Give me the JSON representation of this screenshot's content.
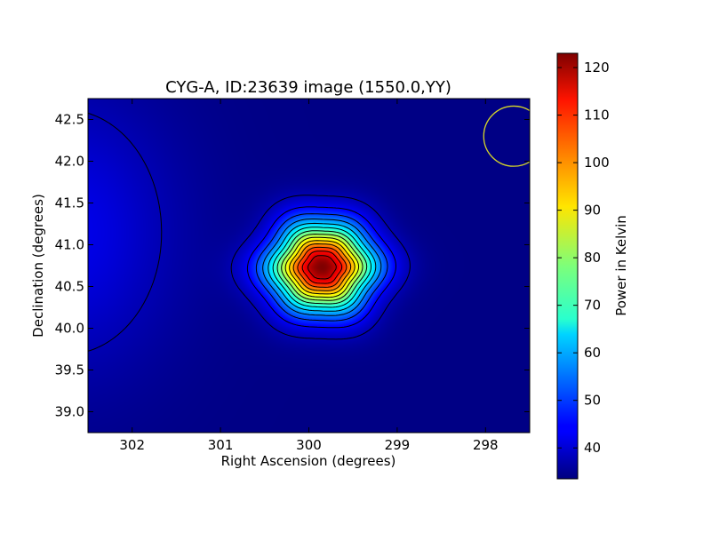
{
  "chart_data": {
    "type": "heatmap",
    "title": "CYG-A, ID:23639 image (1550.0,YY)",
    "xlabel": "Right Ascension (degrees)",
    "ylabel": "Declination (degrees)",
    "xlim": [
      302.5,
      297.5
    ],
    "ylim": [
      38.75,
      42.75
    ],
    "x_ticks": [
      302,
      301,
      300,
      299,
      298
    ],
    "y_ticks": [
      39.0,
      39.5,
      40.0,
      40.5,
      41.0,
      41.5,
      42.0,
      42.5
    ],
    "colorbar": {
      "label": "Power in Kelvin",
      "vmin": 33.5,
      "vmax": 123,
      "ticks": [
        40,
        50,
        60,
        70,
        80,
        90,
        100,
        110,
        120
      ],
      "colormap": "jet"
    },
    "source": {
      "ra": 299.85,
      "dec": 40.73,
      "peak": 123,
      "background": 34,
      "sigma_ra": 0.38,
      "sigma_dec": 0.35
    },
    "secondary_source": {
      "ra": 302.75,
      "dec": 41.15,
      "peak": 43
    },
    "beam": {
      "ra": 297.68,
      "dec": 42.3,
      "radius_deg": 0.36,
      "color": "#d4d42a"
    },
    "grid": false,
    "contour_color": "#000000"
  }
}
